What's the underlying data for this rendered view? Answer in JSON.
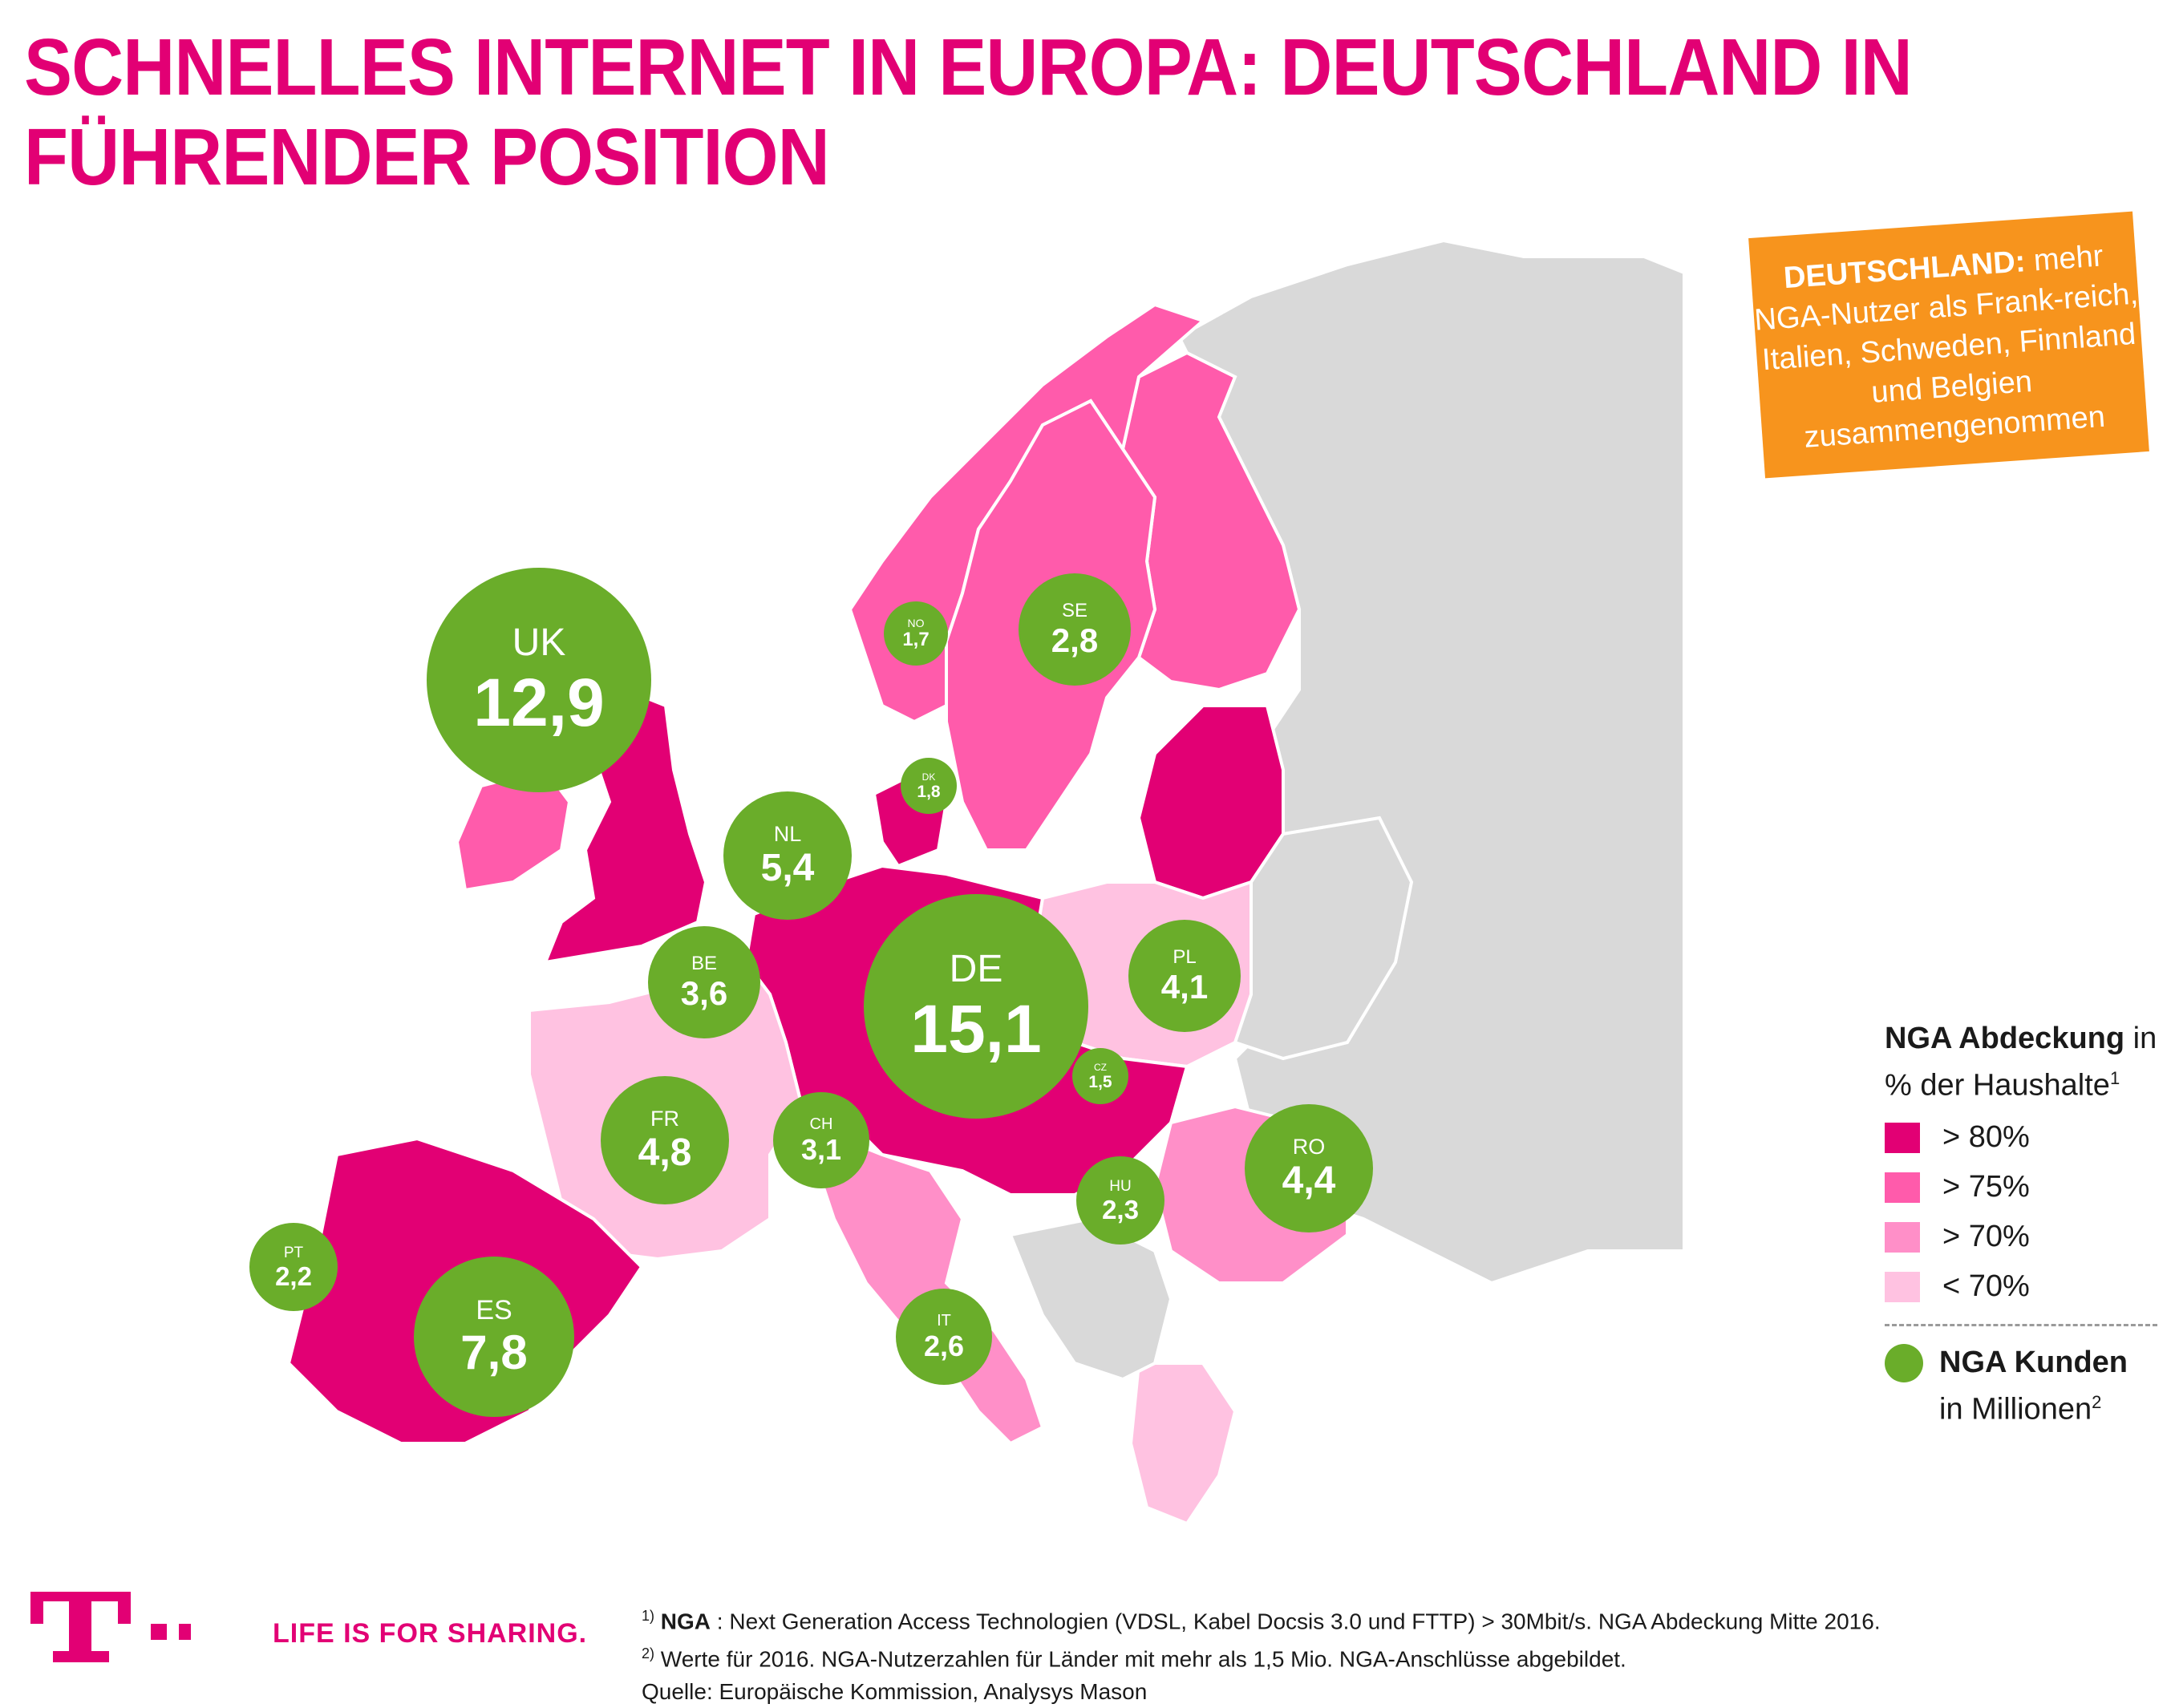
{
  "title": {
    "line1": "SCHNELLES INTERNET IN EUROPA: DEUTSCHLAND IN",
    "line2": "FÜHRENDER POSITION"
  },
  "callout": {
    "bold": "DEUTSCHLAND:",
    "text": " mehr NGA-Nutzer als Frank-reich, Italien, Schweden, Finnland und Belgien zusammengenommen"
  },
  "colors": {
    "brand": "#e20074",
    "gt80": "#e20074",
    "gt75": "#ff5bab",
    "gt70": "#ff8fc8",
    "lt70": "#ffc2e1",
    "nodata": "#d9d9d9",
    "bubble": "#6aad2a",
    "callout": "#f7941d"
  },
  "countries": [
    {
      "code": "UK",
      "value": "12,9",
      "coverage": "> 80%"
    },
    {
      "code": "NO",
      "value": "1,7",
      "coverage": "> 75%"
    },
    {
      "code": "SE",
      "value": "2,8",
      "coverage": "> 75%"
    },
    {
      "code": "DK",
      "value": "1,8",
      "coverage": "> 80%"
    },
    {
      "code": "NL",
      "value": "5,4",
      "coverage": "> 80%"
    },
    {
      "code": "BE",
      "value": "3,6",
      "coverage": "> 80%"
    },
    {
      "code": "DE",
      "value": "15,1",
      "coverage": "> 80%"
    },
    {
      "code": "PL",
      "value": "4,1",
      "coverage": "< 70%"
    },
    {
      "code": "CZ",
      "value": "1,5",
      "coverage": "> 75%"
    },
    {
      "code": "FR",
      "value": "4,8",
      "coverage": "< 70%"
    },
    {
      "code": "CH",
      "value": "3,1",
      "coverage": "> 80%"
    },
    {
      "code": "RO",
      "value": "4,4",
      "coverage": "> 70%"
    },
    {
      "code": "HU",
      "value": "2,3",
      "coverage": "> 80%"
    },
    {
      "code": "PT",
      "value": "2,2",
      "coverage": "> 80%"
    },
    {
      "code": "ES",
      "value": "7,8",
      "coverage": "> 80%"
    },
    {
      "code": "IT",
      "value": "2,6",
      "coverage": "> 70%"
    }
  ],
  "legend": {
    "heading_bold": "NGA Abdeckung",
    "heading_rest": " in % der Haushalte",
    "heading_sup": "1",
    "classes": [
      "> 80%",
      "> 75%",
      "> 70%",
      "< 70%"
    ],
    "kunden_bold": "NGA Kunden",
    "kunden_rest": "in Millionen",
    "kunden_sup": "2"
  },
  "footer": {
    "tagline": "LIFE IS FOR SHARING.",
    "note1_sup": "1)",
    "note1_bold": "NGA",
    "note1_text": " : Next Generation Access Technologien (VDSL, Kabel Docsis 3.0 und FTTP) > 30Mbit/s. NGA Abdeckung Mitte 2016.",
    "note2_sup": "2)",
    "note2_text": " Werte für 2016. NGA-Nutzerzahlen für Länder mit mehr als 1,5 Mio. NGA-Anschlüsse abgebildet.",
    "source": "Quelle: Europäische Kommission, Analysys Mason"
  }
}
